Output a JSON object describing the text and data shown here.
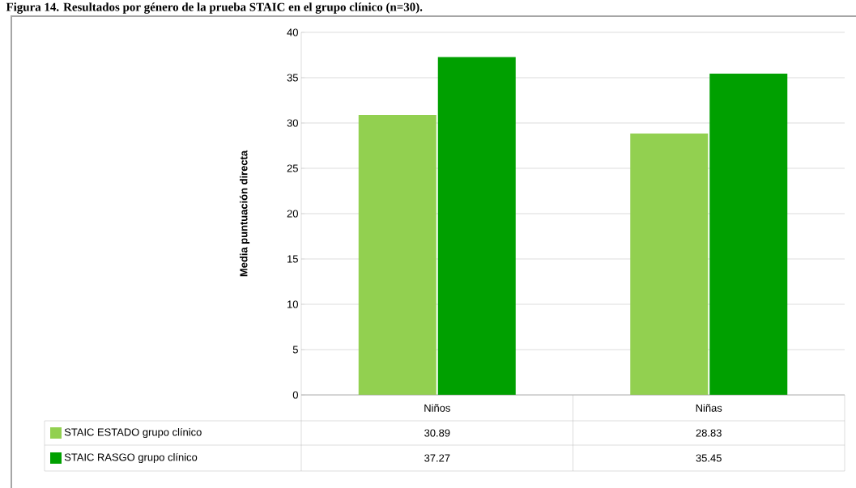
{
  "chart_data": {
    "type": "bar",
    "title": "Figura 14. Resultados por género de la prueba STAIC en el grupo clínico (n=30).",
    "ylabel": "Media puntuación directa",
    "categories": [
      "Niños",
      "Niñas"
    ],
    "series": [
      {
        "name": "STAIC ESTADO grupo clínico",
        "color": "#92d050",
        "values": [
          30.89,
          28.83
        ]
      },
      {
        "name": "STAIC RASGO grupo clínico",
        "color": "#00a000",
        "values": [
          37.27,
          35.45
        ]
      }
    ],
    "ylim": [
      0,
      40
    ],
    "yticks": [
      0,
      5,
      10,
      15,
      20,
      25,
      30,
      35,
      40
    ],
    "grid": "y",
    "data_labels": true,
    "legend": "bottom left"
  }
}
